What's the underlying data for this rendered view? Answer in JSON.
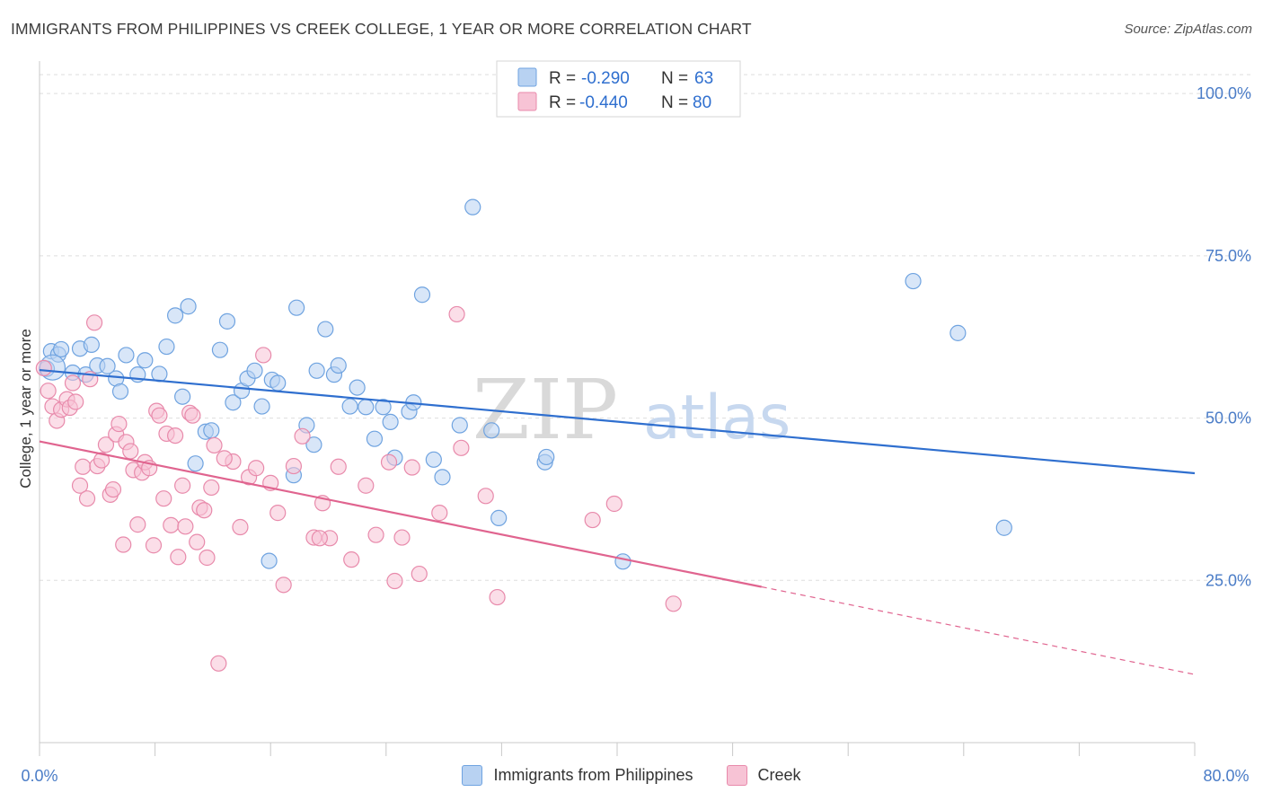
{
  "header": {
    "title": "IMMIGRANTS FROM PHILIPPINES VS CREEK COLLEGE, 1 YEAR OR MORE CORRELATION CHART",
    "source": "Source: ZipAtlas.com"
  },
  "watermark": {
    "zip": "ZIP",
    "atlas": "atlas"
  },
  "colors": {
    "blue": "#6fa3e0",
    "blue_fill": "#b8d2f2",
    "blue_line": "#2f6fcf",
    "pink": "#e88aab",
    "pink_fill": "#f7c3d5",
    "pink_line": "#e0648f",
    "grid": "#dddddd",
    "tick_text": "#4a7cc7"
  },
  "legend": {
    "items": [
      {
        "r_label": "R = ",
        "r_value": "-0.290",
        "n_label": "N = ",
        "n_value": "63"
      },
      {
        "r_label": "R = ",
        "r_value": "-0.440",
        "n_label": "N = ",
        "n_value": "80"
      }
    ]
  },
  "chart_data": {
    "type": "scatter",
    "title": "IMMIGRANTS FROM PHILIPPINES VS CREEK COLLEGE, 1 YEAR OR MORE CORRELATION CHART",
    "xlabel": "",
    "ylabel": "College, 1 year or more",
    "xlim": [
      0,
      80
    ],
    "ylim": [
      0,
      105
    ],
    "x_tick_labels": [
      "0.0%",
      "80.0%"
    ],
    "y_ticks": [
      25,
      50,
      75,
      100
    ],
    "y_tick_labels": [
      "25.0%",
      "50.0%",
      "75.0%",
      "100.0%"
    ],
    "grid": true,
    "legend_position": "top-center",
    "series": [
      {
        "name": "Immigrants from Philippines",
        "color": "#6fa3e0",
        "trend": {
          "x": [
            0,
            80
          ],
          "y": [
            57.4,
            41.5
          ]
        },
        "points": [
          [
            0.5,
            57.6
          ],
          [
            0.8,
            60.3
          ],
          [
            1.3,
            59.8
          ],
          [
            1.5,
            60.6
          ],
          [
            2.3,
            57.0
          ],
          [
            2.8,
            60.7
          ],
          [
            3.2,
            56.7
          ],
          [
            3.6,
            61.3
          ],
          [
            4.0,
            58.1
          ],
          [
            4.7,
            58.0
          ],
          [
            5.3,
            56.1
          ],
          [
            5.6,
            54.1
          ],
          [
            6.0,
            59.7
          ],
          [
            6.8,
            56.7
          ],
          [
            7.3,
            58.9
          ],
          [
            8.3,
            56.8
          ],
          [
            8.8,
            61.0
          ],
          [
            9.4,
            65.8
          ],
          [
            9.9,
            53.3
          ],
          [
            10.3,
            67.2
          ],
          [
            10.8,
            43.0
          ],
          [
            11.5,
            47.9
          ],
          [
            11.9,
            48.1
          ],
          [
            12.5,
            60.5
          ],
          [
            13.0,
            64.9
          ],
          [
            13.4,
            52.4
          ],
          [
            14.0,
            54.2
          ],
          [
            14.4,
            56.1
          ],
          [
            14.9,
            57.3
          ],
          [
            15.4,
            51.8
          ],
          [
            15.9,
            28.0
          ],
          [
            16.1,
            55.9
          ],
          [
            16.5,
            55.4
          ],
          [
            17.6,
            41.2
          ],
          [
            17.8,
            67.0
          ],
          [
            18.5,
            48.9
          ],
          [
            19.0,
            45.9
          ],
          [
            19.2,
            57.3
          ],
          [
            19.8,
            63.7
          ],
          [
            20.4,
            56.7
          ],
          [
            20.7,
            58.1
          ],
          [
            21.5,
            51.8
          ],
          [
            22.0,
            54.7
          ],
          [
            22.6,
            51.7
          ],
          [
            23.2,
            46.8
          ],
          [
            23.8,
            51.7
          ],
          [
            24.3,
            49.4
          ],
          [
            24.6,
            43.9
          ],
          [
            25.6,
            51.0
          ],
          [
            25.9,
            52.4
          ],
          [
            26.5,
            69.0
          ],
          [
            27.3,
            43.6
          ],
          [
            27.9,
            40.9
          ],
          [
            29.1,
            48.9
          ],
          [
            30.0,
            82.5
          ],
          [
            31.3,
            48.1
          ],
          [
            31.8,
            34.6
          ],
          [
            35.0,
            43.2
          ],
          [
            35.1,
            44.0
          ],
          [
            40.4,
            27.9
          ],
          [
            60.5,
            71.1
          ],
          [
            63.6,
            63.1
          ],
          [
            66.8,
            33.1
          ]
        ]
      },
      {
        "name": "Creek",
        "color": "#e88aab",
        "trend": {
          "x": [
            0,
            50.0
          ],
          "y": [
            46.4,
            24.0
          ]
        },
        "trend_dashed": {
          "x": [
            50.0,
            80
          ],
          "y": [
            24.0,
            10.5
          ]
        },
        "points": [
          [
            0.3,
            57.7
          ],
          [
            0.6,
            54.2
          ],
          [
            0.9,
            51.8
          ],
          [
            1.2,
            49.6
          ],
          [
            1.5,
            51.3
          ],
          [
            1.9,
            52.9
          ],
          [
            2.1,
            51.6
          ],
          [
            2.3,
            55.4
          ],
          [
            2.5,
            52.5
          ],
          [
            2.8,
            39.6
          ],
          [
            3.0,
            42.5
          ],
          [
            3.3,
            37.6
          ],
          [
            3.5,
            56.0
          ],
          [
            3.8,
            64.7
          ],
          [
            4.0,
            42.6
          ],
          [
            4.3,
            43.5
          ],
          [
            4.6,
            45.9
          ],
          [
            4.9,
            38.2
          ],
          [
            5.1,
            39.0
          ],
          [
            5.3,
            47.5
          ],
          [
            5.5,
            49.1
          ],
          [
            5.8,
            30.5
          ],
          [
            6.0,
            46.3
          ],
          [
            6.3,
            44.9
          ],
          [
            6.5,
            42.0
          ],
          [
            6.8,
            33.6
          ],
          [
            7.1,
            41.6
          ],
          [
            7.3,
            43.2
          ],
          [
            7.6,
            42.3
          ],
          [
            7.9,
            30.4
          ],
          [
            8.1,
            51.1
          ],
          [
            8.3,
            50.4
          ],
          [
            8.6,
            37.6
          ],
          [
            8.8,
            47.6
          ],
          [
            9.1,
            33.5
          ],
          [
            9.4,
            47.3
          ],
          [
            9.6,
            28.6
          ],
          [
            9.9,
            39.6
          ],
          [
            10.1,
            33.3
          ],
          [
            10.4,
            50.8
          ],
          [
            10.6,
            50.4
          ],
          [
            10.9,
            30.9
          ],
          [
            11.1,
            36.2
          ],
          [
            11.4,
            35.8
          ],
          [
            11.6,
            28.5
          ],
          [
            11.9,
            39.3
          ],
          [
            12.1,
            45.8
          ],
          [
            12.4,
            12.2
          ],
          [
            13.4,
            43.3
          ],
          [
            13.9,
            33.2
          ],
          [
            14.5,
            40.9
          ],
          [
            15.0,
            42.3
          ],
          [
            15.5,
            59.7
          ],
          [
            16.0,
            40.0
          ],
          [
            16.5,
            35.4
          ],
          [
            16.9,
            24.3
          ],
          [
            17.6,
            42.6
          ],
          [
            18.2,
            47.2
          ],
          [
            19.0,
            31.6
          ],
          [
            19.6,
            36.9
          ],
          [
            20.1,
            31.5
          ],
          [
            20.7,
            42.5
          ],
          [
            21.6,
            28.2
          ],
          [
            22.6,
            39.6
          ],
          [
            23.3,
            32.0
          ],
          [
            24.2,
            43.2
          ],
          [
            24.6,
            24.9
          ],
          [
            25.1,
            31.6
          ],
          [
            25.8,
            42.4
          ],
          [
            26.3,
            26.0
          ],
          [
            27.7,
            35.4
          ],
          [
            28.9,
            66.0
          ],
          [
            29.2,
            45.4
          ],
          [
            30.9,
            38.0
          ],
          [
            31.7,
            22.4
          ],
          [
            38.3,
            34.3
          ],
          [
            39.8,
            36.8
          ],
          [
            43.9,
            21.4
          ],
          [
            19.4,
            31.5
          ],
          [
            12.8,
            43.8
          ]
        ]
      }
    ]
  },
  "bottom_legend": {
    "items": [
      {
        "label": "Immigrants from Philippines"
      },
      {
        "label": "Creek"
      }
    ]
  }
}
